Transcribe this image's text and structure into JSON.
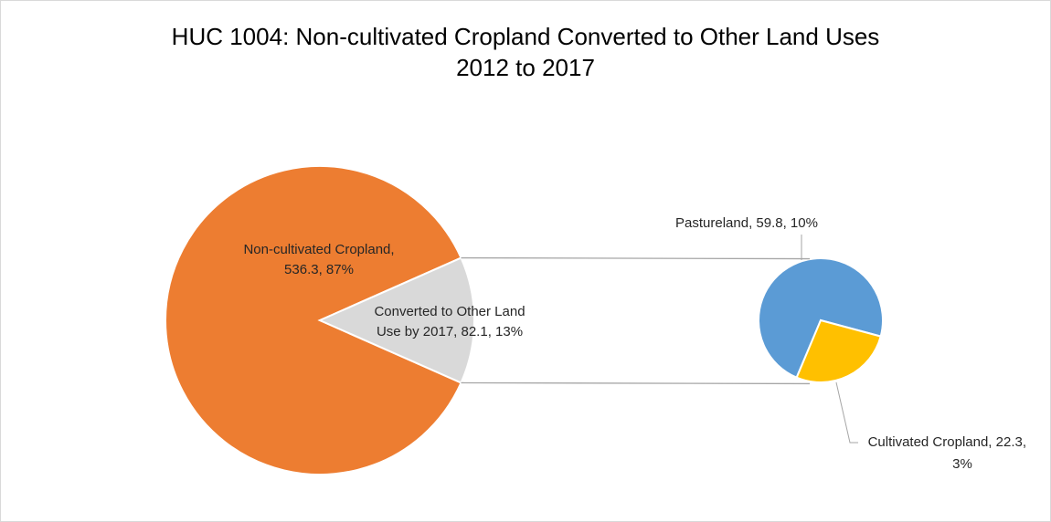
{
  "chart_data": {
    "type": "pie",
    "subtype": "pie-of-pie",
    "title": "HUC 1004: Non-cultivated Cropland Converted to Other Land Uses",
    "subtitle": "2012 to 2017",
    "primary_pie": {
      "slices": [
        {
          "label_line1": "Non-cultivated Cropland,",
          "label_line2": "536.3, 87%",
          "name": "Non-cultivated Cropland",
          "value": 536.3,
          "percent": 87,
          "color": "#ED7D31"
        },
        {
          "label_line1": "Converted to Other Land",
          "label_line2": "Use by 2017, 82.1, 13%",
          "name": "Converted to Other Land Use by 2017",
          "value": 82.1,
          "percent": 13,
          "color": "#D9D9D9"
        }
      ]
    },
    "secondary_pie": {
      "slices": [
        {
          "label_line1": "Pastureland, 59.8, 10%",
          "label_line2": "",
          "name": "Pastureland",
          "value": 59.8,
          "percent": 10,
          "color": "#5B9BD5"
        },
        {
          "label_line1": "Cultivated Cropland, 22.3,",
          "label_line2": "3%",
          "name": "Cultivated Cropland",
          "value": 22.3,
          "percent": 3,
          "color": "#FFC000"
        }
      ]
    },
    "legend": "none",
    "connector_color": "#A6A6A6"
  }
}
